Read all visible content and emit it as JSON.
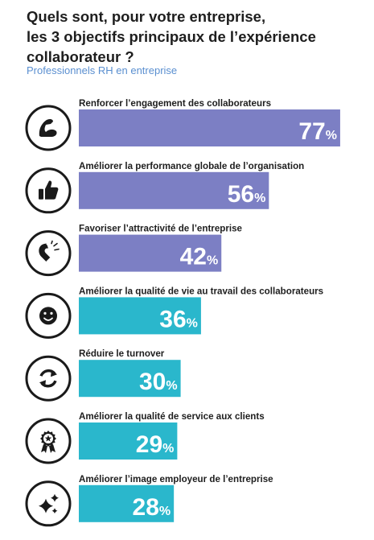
{
  "title_line1": "Quels sont, pour votre entreprise,",
  "title_line2": "les 3 objectifs principaux de l’expérience",
  "title_line3": "collaborateur ?",
  "subtitle": "Professionnels RH en entreprise",
  "colors": {
    "top3": "#7c7fc4",
    "others": "#2ab7cc",
    "icon": "#1a1a1a"
  },
  "chart_data": {
    "type": "bar",
    "orientation": "horizontal",
    "unit": "%",
    "categories": [
      "Renforcer l’engagement des collaborateurs",
      "Améliorer la performance globale de l’organisation",
      "Favoriser l’attractivité de l’entreprise",
      "Améliorer la qualité de vie au travail des collaborateurs",
      "Réduire le turnover",
      "Améliorer la qualité de service aux clients",
      "Améliorer l’image employeur de l’entreprise"
    ],
    "values": [
      77,
      56,
      42,
      36,
      30,
      29,
      28
    ],
    "icons": [
      "flexed-arm-icon",
      "thumbs-up-icon",
      "magnet-icon",
      "smiley-icon",
      "refresh-cycle-icon",
      "award-rosette-icon",
      "sparkles-icon"
    ],
    "bar_colors": [
      "#7c7fc4",
      "#7c7fc4",
      "#7c7fc4",
      "#2ab7cc",
      "#2ab7cc",
      "#2ab7cc",
      "#2ab7cc"
    ]
  }
}
